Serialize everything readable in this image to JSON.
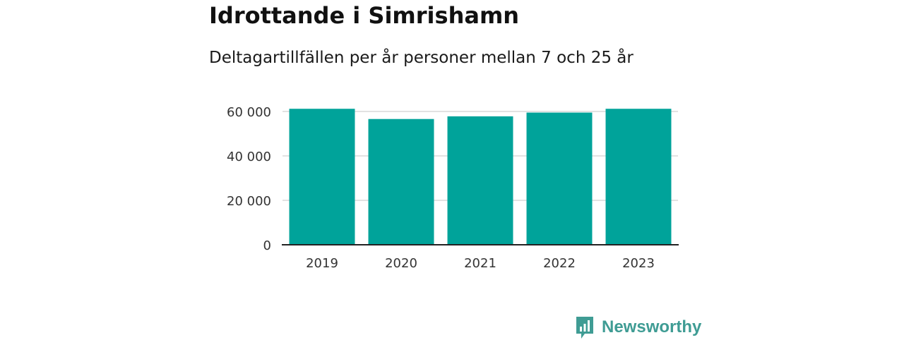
{
  "header": {
    "title": "Idrottande i Simrishamn",
    "subtitle": "Deltagartillfällen per år personer mellan 7 och 25 år"
  },
  "chart_data": {
    "type": "bar",
    "categories": [
      "2019",
      "2020",
      "2021",
      "2022",
      "2023"
    ],
    "values": [
      61200,
      56600,
      57800,
      59500,
      61200
    ],
    "title": "Idrottande i Simrishamn",
    "subtitle": "Deltagartillfällen per år personer mellan 7 och 25 år",
    "xlabel": "",
    "ylabel": "",
    "ylim": [
      0,
      60000
    ],
    "yticks": [
      0,
      20000,
      40000,
      60000
    ],
    "ytick_labels": [
      "0",
      "20 000",
      "40 000",
      "60 000"
    ],
    "grid": true,
    "legend": "none",
    "bar_color": "#00a39a"
  },
  "brand": {
    "name": "Newsworthy",
    "color": "#3f9c94",
    "icon": "bar-chart-speech-bubble-icon"
  }
}
